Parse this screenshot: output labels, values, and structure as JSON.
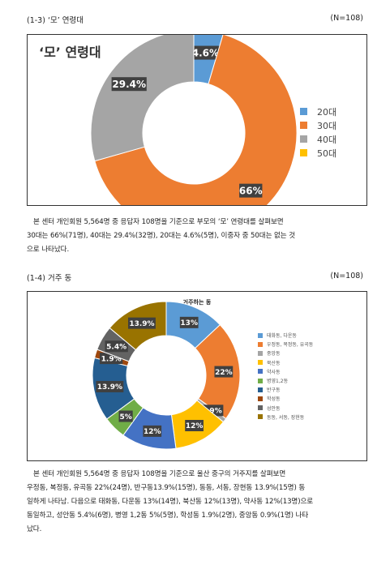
{
  "section1": {
    "heading": "(1-3) ‘모’ 연령대",
    "n_label": "(N=108)",
    "paragraph": [
      "본 센터 개인회원 5,564명 중 응답자 108명을 기준으로 부모의 ‘모’ 연령대를 살펴보면",
      "30대는 66%(71명), 40대는 29.4%(32명), 20대는 4.6%(5명), 이중자 중 50대는 없는 것",
      "으로 나타났다."
    ]
  },
  "section2": {
    "heading": "(1-4) 거주 동",
    "n_label": "(N=108)",
    "paragraph": [
      "본 센터 개인회원 5,564명 중 응답자 108명을 기준으로 울산 중구의 거주지를 살펴보면",
      "우정동, 복정동, 유곡동 22%(24명), 반구동13.9%(15명), 동동, 서동, 장현동 13.9%(15명) 동",
      "일하게 나타남. 다음으로 태화동, 다운동 13%(14명), 북산동 12%(13명), 약사동 12%(13명)으로",
      "동일하고, 성안동 5.4%(6명), 병영 1,2동 5%(5명), 학성동 1.9%(2명), 중앙동 0.9%(1명) 나타",
      "났다."
    ]
  },
  "chart_data": [
    {
      "type": "pie",
      "title": "‘모’ 연령대",
      "categories": [
        "20대",
        "30대",
        "40대",
        "50대"
      ],
      "values": [
        4.6,
        66,
        29.4,
        0
      ],
      "labels": [
        "4.6%",
        "66%",
        "29.4%",
        ""
      ],
      "colors": [
        "#5B9BD5",
        "#ED7D31",
        "#A5A5A5",
        "#FFC000"
      ],
      "legend_position": "right"
    },
    {
      "type": "pie",
      "title": "거주하는 동",
      "categories": [
        "태화동, 다운동",
        "우정동, 복정동, 유곡동",
        "중앙동",
        "북산동",
        "약사동",
        "병영1,2동",
        "반구동",
        "학성동",
        "성안동",
        "동동, 서동, 장현동"
      ],
      "values": [
        13,
        22,
        0.9,
        12,
        12,
        5,
        13.9,
        1.9,
        5.4,
        13.9
      ],
      "labels": [
        "13%",
        "22%",
        "0.9%",
        "12%",
        "12%",
        "5%",
        "13.9%",
        "1.9%",
        "5.4%",
        "13.9%"
      ],
      "colors": [
        "#5B9BD5",
        "#ED7D31",
        "#A5A5A5",
        "#FFC000",
        "#4472C4",
        "#70AD47",
        "#255E91",
        "#9E480E",
        "#636363",
        "#997300"
      ],
      "legend_position": "right"
    }
  ]
}
